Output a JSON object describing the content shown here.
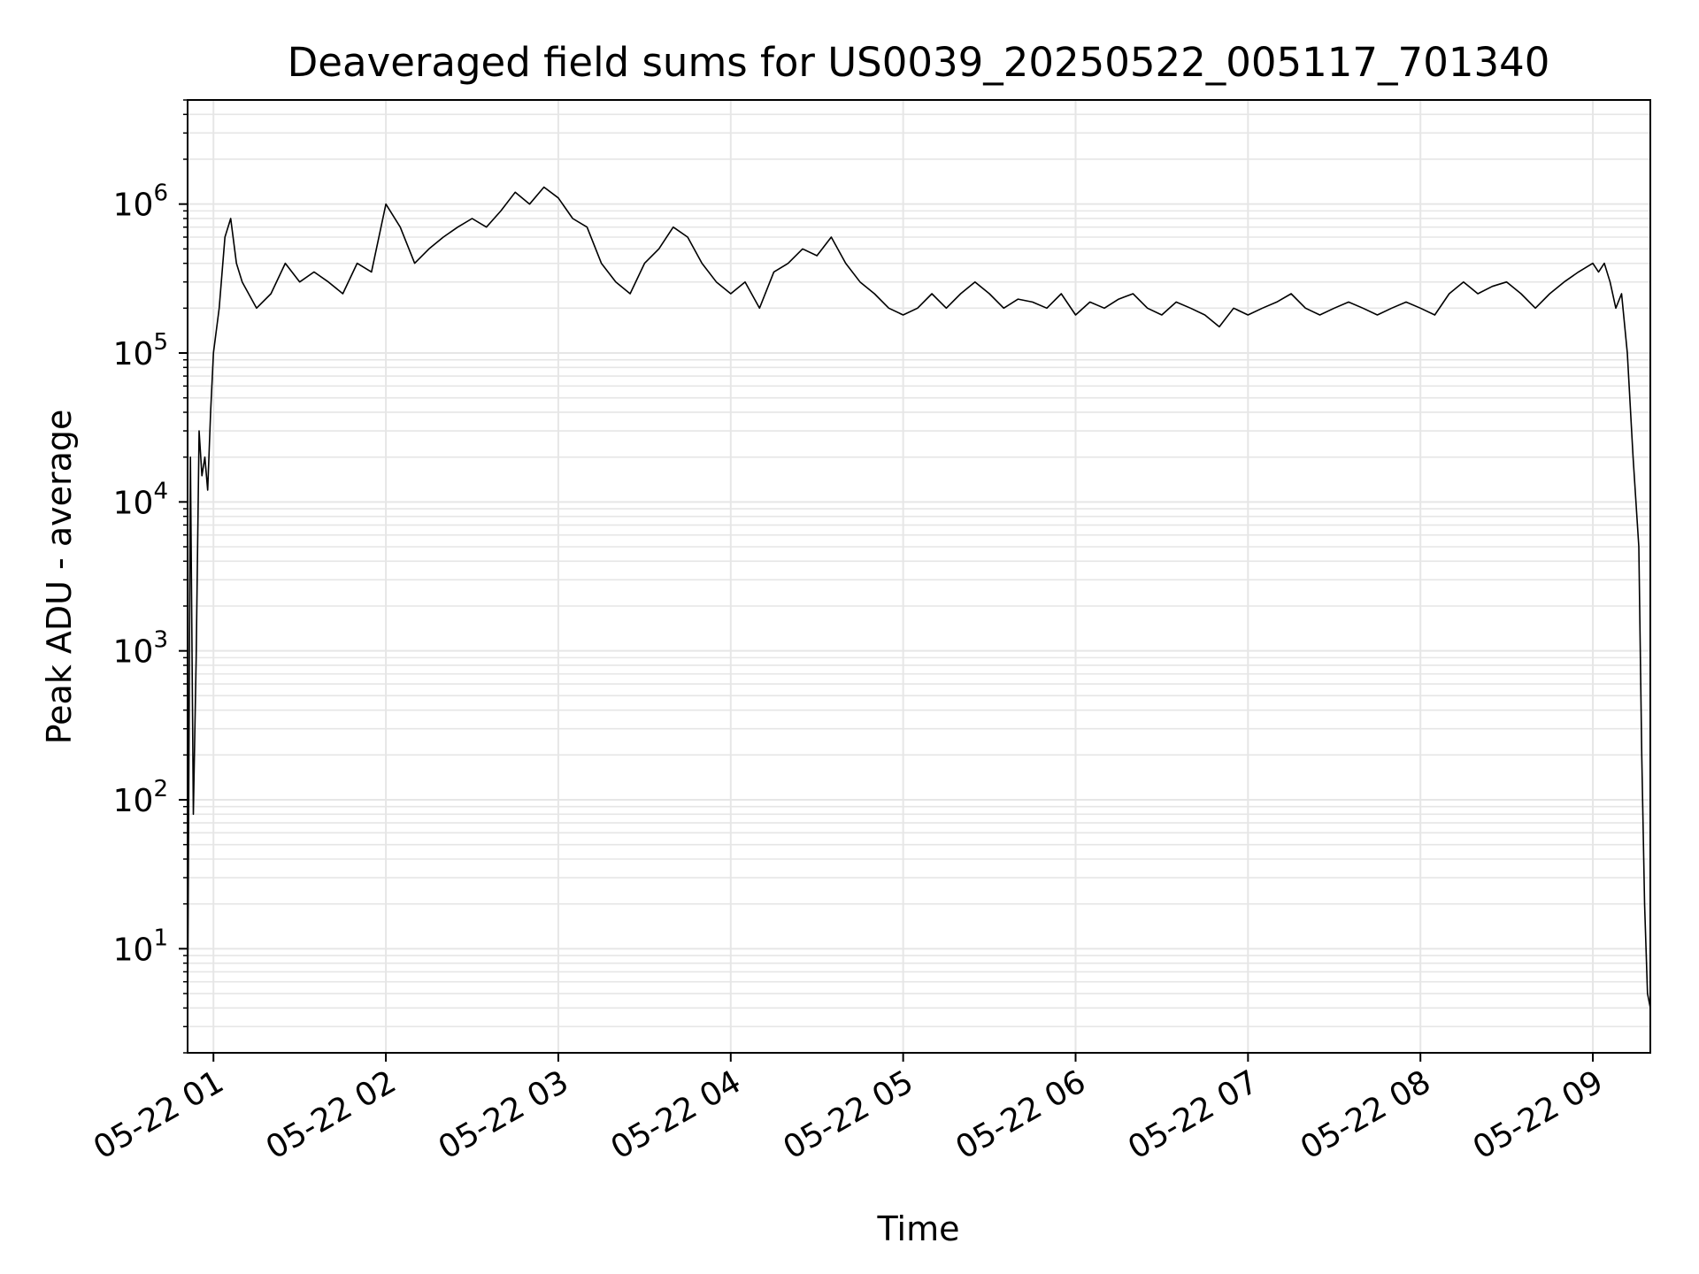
{
  "chart_data": {
    "type": "line",
    "title": "Deaveraged field sums for US0039_20250522_005117_701340",
    "xlabel": "Time",
    "ylabel": "Peak ADU - average",
    "yscale": "log",
    "grid": true,
    "legend": "none",
    "x_range": [
      "2025-05-22 00:51",
      "2025-05-22 09:20"
    ],
    "ylim": [
      2,
      5000000
    ],
    "x_ticks": [
      {
        "time": "2025-05-22 01:00",
        "label": "05-22 01"
      },
      {
        "time": "2025-05-22 02:00",
        "label": "05-22 02"
      },
      {
        "time": "2025-05-22 03:00",
        "label": "05-22 03"
      },
      {
        "time": "2025-05-22 04:00",
        "label": "05-22 04"
      },
      {
        "time": "2025-05-22 05:00",
        "label": "05-22 05"
      },
      {
        "time": "2025-05-22 06:00",
        "label": "05-22 06"
      },
      {
        "time": "2025-05-22 07:00",
        "label": "05-22 07"
      },
      {
        "time": "2025-05-22 08:00",
        "label": "05-22 08"
      },
      {
        "time": "2025-05-22 09:00",
        "label": "05-22 09"
      }
    ],
    "y_ticks": [
      {
        "value": 10,
        "base": "10",
        "exp": "1"
      },
      {
        "value": 100,
        "base": "10",
        "exp": "2"
      },
      {
        "value": 1000,
        "base": "10",
        "exp": "3"
      },
      {
        "value": 10000,
        "base": "10",
        "exp": "4"
      },
      {
        "value": 100000,
        "base": "10",
        "exp": "5"
      },
      {
        "value": 1000000,
        "base": "10",
        "exp": "6"
      }
    ],
    "line_color": "#000000",
    "grid_color": "#e6e6e6",
    "series": [
      {
        "x": [
          "00:51",
          "00:52",
          "00:53",
          "00:54",
          "00:55",
          "00:56",
          "00:57",
          "00:58",
          "00:59",
          "01:00",
          "01:02",
          "01:04",
          "01:06",
          "01:08",
          "01:10",
          "01:15",
          "01:20",
          "01:25",
          "01:30",
          "01:35",
          "01:40",
          "01:45",
          "01:50",
          "01:55",
          "02:00",
          "02:05",
          "02:10",
          "02:15",
          "02:20",
          "02:25",
          "02:30",
          "02:35",
          "02:40",
          "02:45",
          "02:50",
          "02:55",
          "03:00",
          "03:05",
          "03:10",
          "03:15",
          "03:20",
          "03:25",
          "03:30",
          "03:35",
          "03:40",
          "03:45",
          "03:50",
          "03:55",
          "04:00",
          "04:05",
          "04:10",
          "04:15",
          "04:20",
          "04:25",
          "04:30",
          "04:35",
          "04:40",
          "04:45",
          "04:50",
          "04:55",
          "05:00",
          "05:05",
          "05:10",
          "05:15",
          "05:20",
          "05:25",
          "05:30",
          "05:35",
          "05:40",
          "05:45",
          "05:50",
          "05:55",
          "06:00",
          "06:05",
          "06:10",
          "06:15",
          "06:20",
          "06:25",
          "06:30",
          "06:35",
          "06:40",
          "06:45",
          "06:50",
          "06:55",
          "07:00",
          "07:05",
          "07:10",
          "07:15",
          "07:20",
          "07:25",
          "07:30",
          "07:35",
          "07:40",
          "07:45",
          "07:50",
          "07:55",
          "08:00",
          "08:05",
          "08:10",
          "08:15",
          "08:20",
          "08:25",
          "08:30",
          "08:35",
          "08:40",
          "08:45",
          "08:50",
          "08:55",
          "09:00",
          "09:02",
          "09:04",
          "09:06",
          "09:08",
          "09:10",
          "09:12",
          "09:14",
          "09:16",
          "09:17",
          "09:18",
          "09:19",
          "09:20"
        ],
        "y": [
          3,
          20000,
          80,
          900,
          30000,
          15000,
          20000,
          12000,
          40000,
          100000,
          200000,
          600000,
          800000,
          400000,
          300000,
          200000,
          250000,
          400000,
          300000,
          350000,
          300000,
          250000,
          400000,
          350000,
          1000000,
          700000,
          400000,
          500000,
          600000,
          700000,
          800000,
          700000,
          900000,
          1200000,
          1000000,
          1300000,
          1100000,
          800000,
          700000,
          400000,
          300000,
          250000,
          400000,
          500000,
          700000,
          600000,
          400000,
          300000,
          250000,
          300000,
          200000,
          350000,
          400000,
          500000,
          450000,
          600000,
          400000,
          300000,
          250000,
          200000,
          180000,
          200000,
          250000,
          200000,
          250000,
          300000,
          250000,
          200000,
          230000,
          220000,
          200000,
          250000,
          180000,
          220000,
          200000,
          230000,
          250000,
          200000,
          180000,
          220000,
          200000,
          180000,
          150000,
          200000,
          180000,
          200000,
          220000,
          250000,
          200000,
          180000,
          200000,
          220000,
          200000,
          180000,
          200000,
          220000,
          200000,
          180000,
          250000,
          300000,
          250000,
          280000,
          300000,
          250000,
          200000,
          250000,
          300000,
          350000,
          400000,
          350000,
          400000,
          300000,
          200000,
          250000,
          100000,
          20000,
          5000,
          200,
          20,
          5,
          4
        ]
      }
    ]
  }
}
